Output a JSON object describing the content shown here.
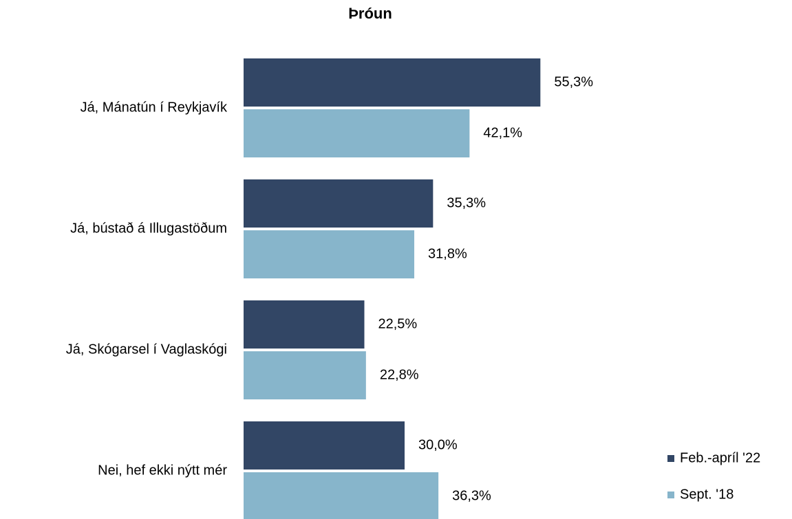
{
  "chart_data": {
    "type": "bar",
    "orientation": "horizontal",
    "title": "Þróun",
    "categories": [
      "Já, Mánatún í Reykjavík",
      "Já, bústað á Illugastöðum",
      "Já, Skógarsel í Vaglaskógi",
      "Nei, hef ekki nýtt mér"
    ],
    "series": [
      {
        "name": "Feb.-apríl '22",
        "color": "#324665",
        "values": [
          55.3,
          35.3,
          22.5,
          30.0
        ],
        "value_labels": [
          "55,3%",
          "35,3%",
          "22,5%",
          "30,0%"
        ]
      },
      {
        "name": "Sept. '18",
        "color": "#87b5cb",
        "values": [
          42.1,
          31.8,
          22.8,
          36.3
        ],
        "value_labels": [
          "42,1%",
          "31,8%",
          "22,8%",
          "36,3%"
        ]
      }
    ],
    "legend": "bottom right"
  }
}
